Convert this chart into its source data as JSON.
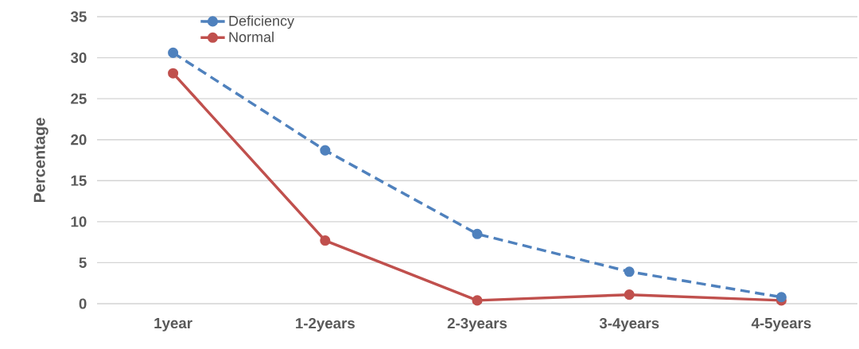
{
  "chart_data": {
    "type": "line",
    "ylabel": "Percentage",
    "categories": [
      "1year",
      "1-2years",
      "2-3years",
      "3-4years",
      "4-5years"
    ],
    "series": [
      {
        "name": "Deficiency",
        "color": "#4f81bd",
        "line_style": "dashed",
        "values": [
          30.6,
          18.7,
          8.5,
          3.9,
          0.8
        ]
      },
      {
        "name": "Normal",
        "color": "#c0504d",
        "line_style": "solid",
        "values": [
          28.1,
          7.7,
          0.4,
          1.1,
          0.4
        ]
      }
    ],
    "ylim": [
      0,
      35
    ],
    "yticks": [
      0,
      5,
      10,
      15,
      20,
      25,
      30,
      35
    ],
    "grid": "y",
    "legend": "top left",
    "marker": "circle"
  }
}
